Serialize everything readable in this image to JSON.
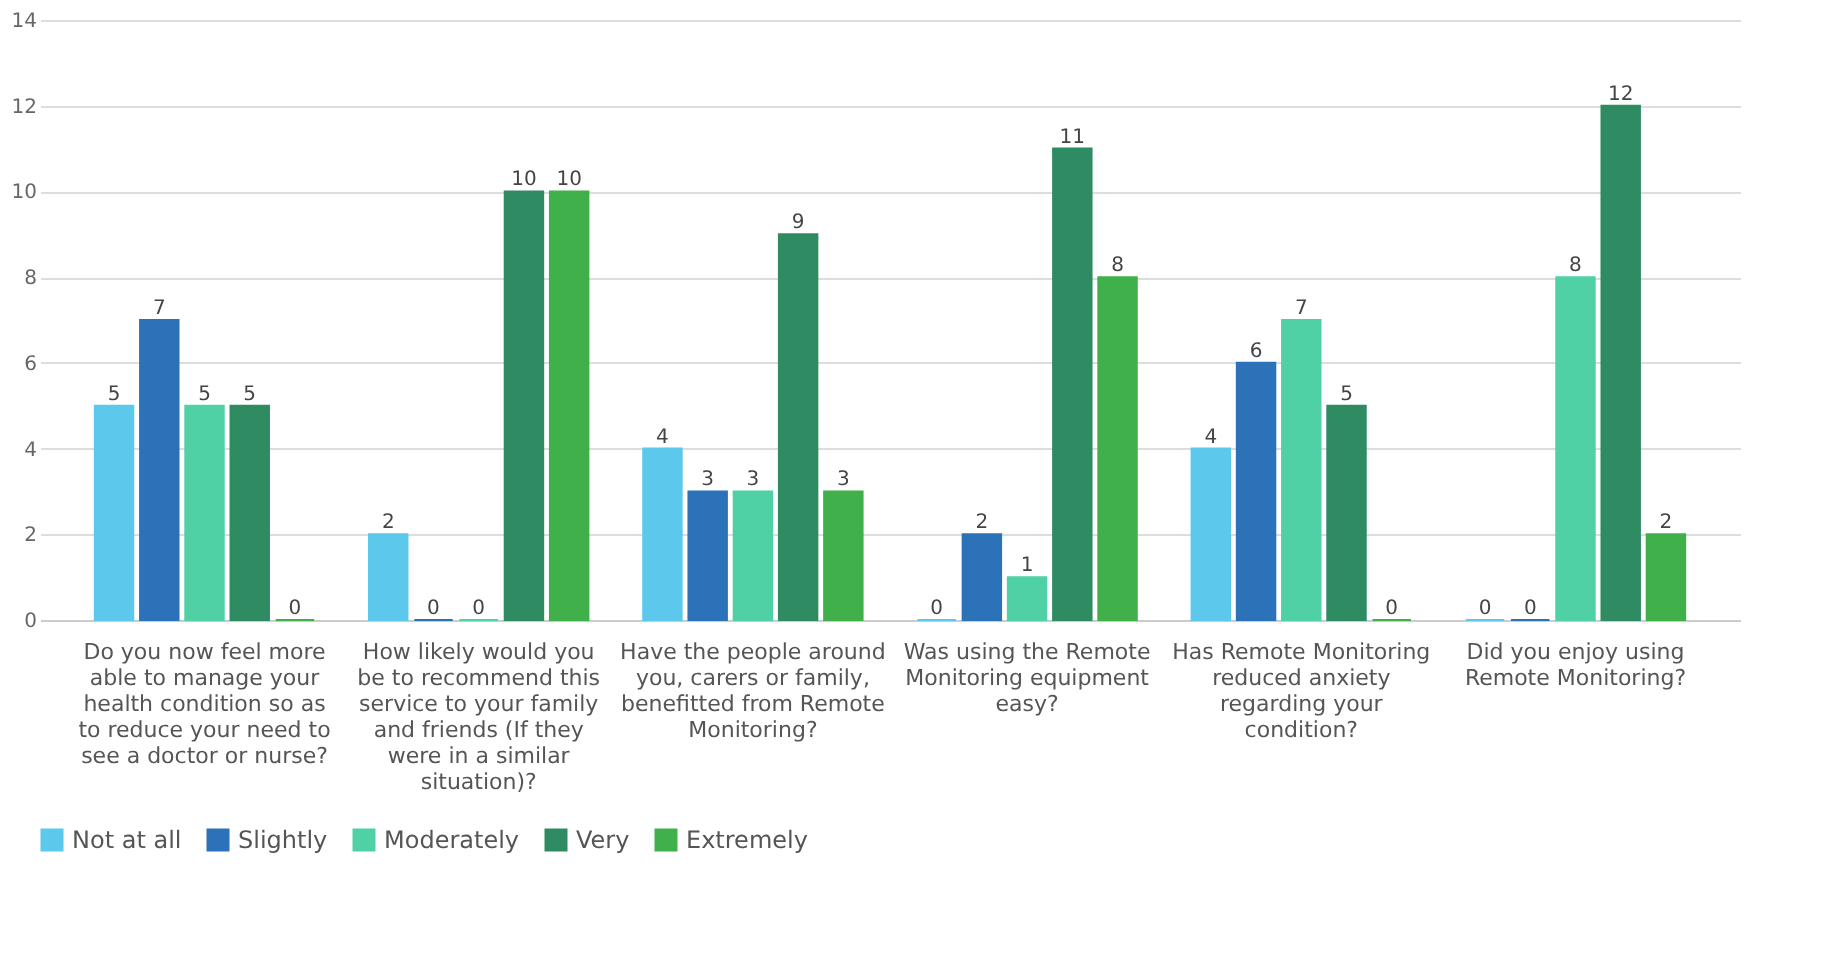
{
  "chart_data": {
    "type": "bar",
    "categories": [
      "Do you now feel more able to manage your health condition so as to reduce your need to see a doctor or nurse?",
      "How likely would you be to recommend this service to your family and friends (If they were in a similar situation)?",
      "Have the people around you, carers or family, benefitted from Remote Monitoring?",
      "Was using the Remote Monitoring equipment easy?",
      "Has Remote Monitoring reduced anxiety regarding your condition?",
      "Did you enjoy using Remote Monitoring?"
    ],
    "series": [
      {
        "name": "Not at all",
        "color": "#5bc8ec",
        "values": [
          5,
          2,
          4,
          0,
          4,
          0
        ]
      },
      {
        "name": "Slightly",
        "color": "#2b72b9",
        "values": [
          7,
          0,
          3,
          2,
          6,
          0
        ]
      },
      {
        "name": "Moderately",
        "color": "#4fd1a5",
        "values": [
          5,
          0,
          3,
          1,
          7,
          8
        ]
      },
      {
        "name": "Very",
        "color": "#2e8b62",
        "values": [
          5,
          10,
          9,
          11,
          5,
          12
        ]
      },
      {
        "name": "Extremely",
        "color": "#3fb04a",
        "values": [
          0,
          10,
          3,
          8,
          0,
          2
        ]
      }
    ],
    "ylim": [
      0,
      14
    ],
    "yticks": [
      0,
      2,
      4,
      6,
      8,
      10,
      12,
      14
    ],
    "grid": "y",
    "legend": "bottom",
    "data_labels": true
  }
}
